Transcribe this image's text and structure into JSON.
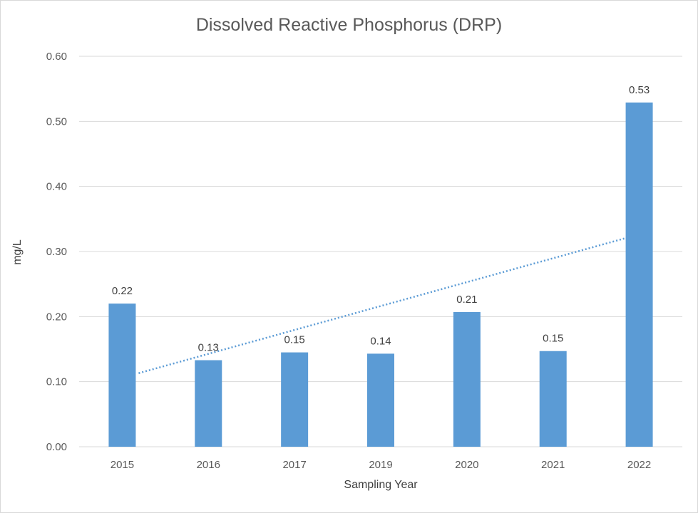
{
  "chart_data": {
    "type": "bar",
    "title": "Dissolved Reactive Phosphorus (DRP)",
    "xlabel": "Sampling Year",
    "ylabel": "mg/L",
    "categories": [
      "2015",
      "2016",
      "2017",
      "2019",
      "2020",
      "2021",
      "2022"
    ],
    "values": [
      0.22,
      0.133,
      0.145,
      0.143,
      0.207,
      0.147,
      0.529
    ],
    "data_labels": [
      "0.22",
      "0.13",
      "0.15",
      "0.14",
      "0.21",
      "0.15",
      "0.53"
    ],
    "ylim": [
      0,
      0.6
    ],
    "y_ticks": [
      "0.00",
      "0.10",
      "0.20",
      "0.30",
      "0.40",
      "0.50",
      "0.60"
    ],
    "grid": true,
    "trendline": {
      "style": "dotted",
      "type": "linear",
      "start": 0.113,
      "end": 0.32
    },
    "colors": {
      "bar": "#5b9bd5",
      "trendline": "#5b9bd5",
      "grid": "#d9d9d9"
    }
  }
}
